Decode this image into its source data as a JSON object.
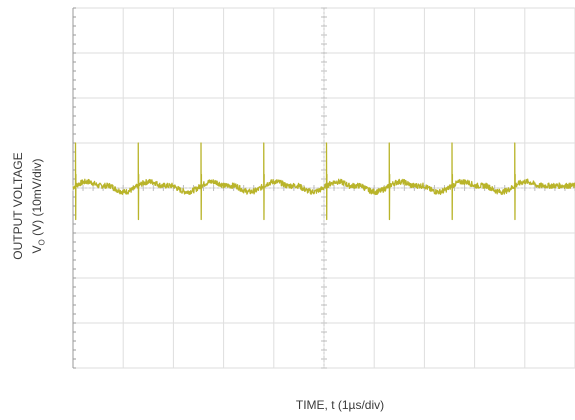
{
  "chart_data": {
    "type": "line",
    "xlabel": "TIME, t (1µs/div)",
    "ylabel_line1": "OUTPUT VOLTAGE",
    "ylabel_line2": "V",
    "ylabel_line2_sub": "O",
    "ylabel_line2_rest": " (V) (10mV/div)",
    "x_divisions": 10,
    "y_divisions": 8,
    "xlim": [
      0,
      10
    ],
    "ylim": [
      -4,
      4
    ],
    "grid": true,
    "trace_color": "#b9b42a",
    "series": [
      {
        "baseline_div": 0.05,
        "spike_positions_div": [
          0.05,
          1.3,
          2.55,
          3.8,
          5.05,
          6.3,
          7.55,
          8.8
        ],
        "spike_peak_div": 0.95,
        "spike_trough_div": -0.75,
        "ripple_amplitude_div": 0.15
      }
    ]
  }
}
